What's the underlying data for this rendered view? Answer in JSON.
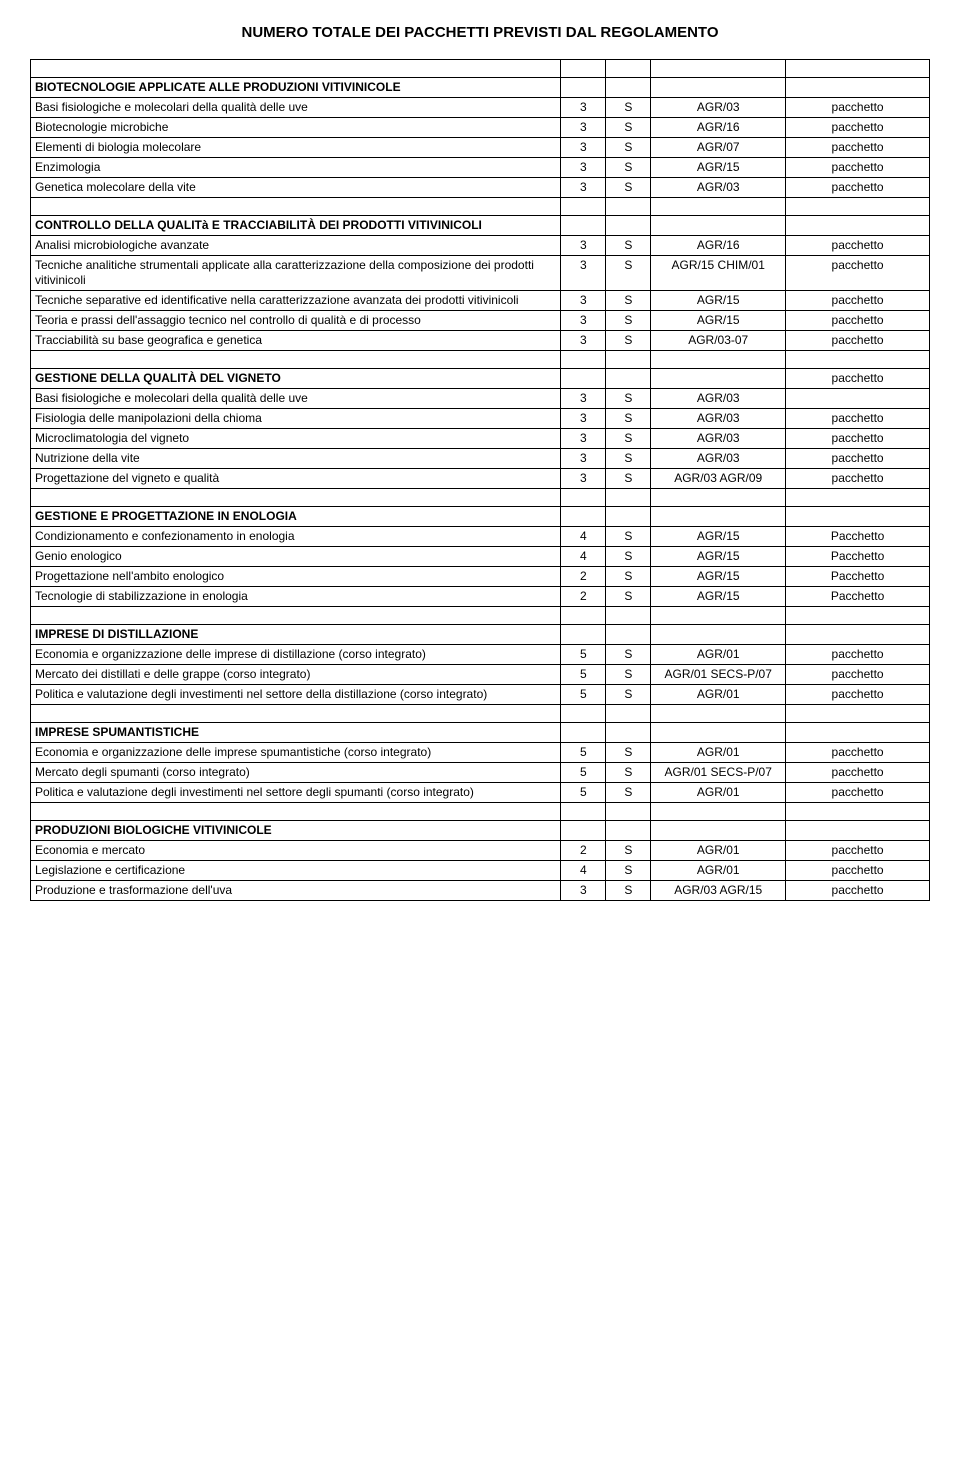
{
  "title": "NUMERO TOTALE DEI PACCHETTI PREVISTI DAL REGOLAMENTO",
  "rows": [
    {
      "blank": true
    },
    {
      "c1": "BIOTECNOLOGIE APPLICATE ALLE PRODUZIONI VITIVINICOLE",
      "bold": true
    },
    {
      "c1": "Basi fisiologiche e molecolari della qualità delle uve",
      "c2": "3",
      "c3": "S",
      "c4": "AGR/03",
      "c5": "pacchetto"
    },
    {
      "c1": "Biotecnologie microbiche",
      "c2": "3",
      "c3": "S",
      "c4": "AGR/16",
      "c5": "pacchetto"
    },
    {
      "c1": "Elementi di biologia molecolare",
      "c2": "3",
      "c3": "S",
      "c4": "AGR/07",
      "c5": "pacchetto"
    },
    {
      "c1": "Enzimologia",
      "c2": "3",
      "c3": "S",
      "c4": "AGR/15",
      "c5": "pacchetto"
    },
    {
      "c1": "Genetica molecolare della vite",
      "c2": "3",
      "c3": "S",
      "c4": "AGR/03",
      "c5": "pacchetto"
    },
    {
      "blank": true
    },
    {
      "c1": "CONTROLLO DELLA QUALITà E TRACCIABILITÀ DEI PRODOTTI VITIVINICOLI",
      "bold": true
    },
    {
      "c1": "Analisi microbiologiche avanzate",
      "c2": "3",
      "c3": "S",
      "c4": "AGR/16",
      "c5": "pacchetto"
    },
    {
      "c1": "Tecniche analitiche strumentali applicate alla caratterizzazione della composizione dei prodotti vitivinicoli",
      "c2": "3",
      "c3": "S",
      "c4": "AGR/15 CHIM/01",
      "c5": "pacchetto"
    },
    {
      "c1": "Tecniche separative ed identificative nella caratterizzazione avanzata dei prodotti vitivinicoli",
      "c2": "3",
      "c3": "S",
      "c4": "AGR/15",
      "c5": "pacchetto"
    },
    {
      "c1": "Teoria e prassi dell'assaggio tecnico nel controllo di qualità e di processo",
      "c2": "3",
      "c3": "S",
      "c4": "AGR/15",
      "c5": "pacchetto"
    },
    {
      "c1": "Tracciabilità su base geografica e genetica",
      "c2": "3",
      "c3": "S",
      "c4": "AGR/03-07",
      "c5": "pacchetto"
    },
    {
      "blank": true
    },
    {
      "c1": "GESTIONE DELLA QUALITÀ DEL VIGNETO",
      "bold": true,
      "c5": "pacchetto"
    },
    {
      "c1": "Basi fisiologiche e molecolari della qualità delle uve",
      "c2": "3",
      "c3": "S",
      "c4": "AGR/03"
    },
    {
      "c1": "Fisiologia delle manipolazioni della chioma",
      "c2": "3",
      "c3": "S",
      "c4": "AGR/03",
      "c5": "pacchetto"
    },
    {
      "c1": "Microclimatologia del vigneto",
      "c2": "3",
      "c3": "S",
      "c4": "AGR/03",
      "c5": "pacchetto"
    },
    {
      "c1": "Nutrizione della vite",
      "c2": "3",
      "c3": "S",
      "c4": "AGR/03",
      "c5": "pacchetto"
    },
    {
      "c1": "Progettazione del vigneto e qualità",
      "c2": "3",
      "c3": "S",
      "c4": "AGR/03 AGR/09",
      "c5": "pacchetto"
    },
    {
      "blank": true
    },
    {
      "c1": "GESTIONE E PROGETTAZIONE IN ENOLOGIA",
      "bold": true
    },
    {
      "c1": "Condizionamento e confezionamento in enologia",
      "c2": "4",
      "c3": "S",
      "c4": "AGR/15",
      "c5": "Pacchetto"
    },
    {
      "c1": "Genio enologico",
      "c2": "4",
      "c3": "S",
      "c4": "AGR/15",
      "c5": "Pacchetto"
    },
    {
      "c1": "Progettazione nell'ambito enologico",
      "c2": "2",
      "c3": "S",
      "c4": "AGR/15",
      "c5": "Pacchetto"
    },
    {
      "c1": "Tecnologie di stabilizzazione in enologia",
      "c2": "2",
      "c3": "S",
      "c4": "AGR/15",
      "c5": "Pacchetto"
    },
    {
      "blank": true
    },
    {
      "c1": "IMPRESE DI DISTILLAZIONE",
      "bold": true
    },
    {
      "c1": "Economia e organizzazione delle imprese di distillazione (corso integrato)",
      "c2": "5",
      "c3": "S",
      "c4": "AGR/01",
      "c5": "pacchetto"
    },
    {
      "c1": "Mercato dei distillati e delle grappe (corso integrato)",
      "c2": "5",
      "c3": "S",
      "c4": "AGR/01 SECS-P/07",
      "c5": "pacchetto"
    },
    {
      "c1": "Politica e valutazione degli investimenti nel settore della distillazione (corso integrato)",
      "c2": "5",
      "c3": "S",
      "c4": "AGR/01",
      "c5": "pacchetto"
    },
    {
      "blank": true
    },
    {
      "c1": "IMPRESE SPUMANTISTICHE",
      "bold": true
    },
    {
      "c1": "Economia e organizzazione delle imprese spumantistiche (corso integrato)",
      "c2": "5",
      "c3": "S",
      "c4": "AGR/01",
      "c5": "pacchetto"
    },
    {
      "c1": "Mercato degli spumanti (corso integrato)",
      "c2": "5",
      "c3": "S",
      "c4": "AGR/01 SECS-P/07",
      "c5": "pacchetto"
    },
    {
      "c1": "Politica e valutazione degli investimenti nel settore degli spumanti (corso integrato)",
      "c2": "5",
      "c3": "S",
      "c4": "AGR/01",
      "c5": "pacchetto"
    },
    {
      "blank": true
    },
    {
      "c1": "PRODUZIONI BIOLOGICHE VITIVINICOLE",
      "bold": true
    },
    {
      "c1": "Economia e mercato",
      "c2": "2",
      "c3": "S",
      "c4": "AGR/01",
      "c5": "pacchetto"
    },
    {
      "c1": "Legislazione e certificazione",
      "c2": "4",
      "c3": "S",
      "c4": "AGR/01",
      "c5": "pacchetto"
    },
    {
      "c1": "Produzione e trasformazione dell'uva",
      "c2": "3",
      "c3": "S",
      "c4": "AGR/03 AGR/15",
      "c5": "pacchetto"
    }
  ]
}
